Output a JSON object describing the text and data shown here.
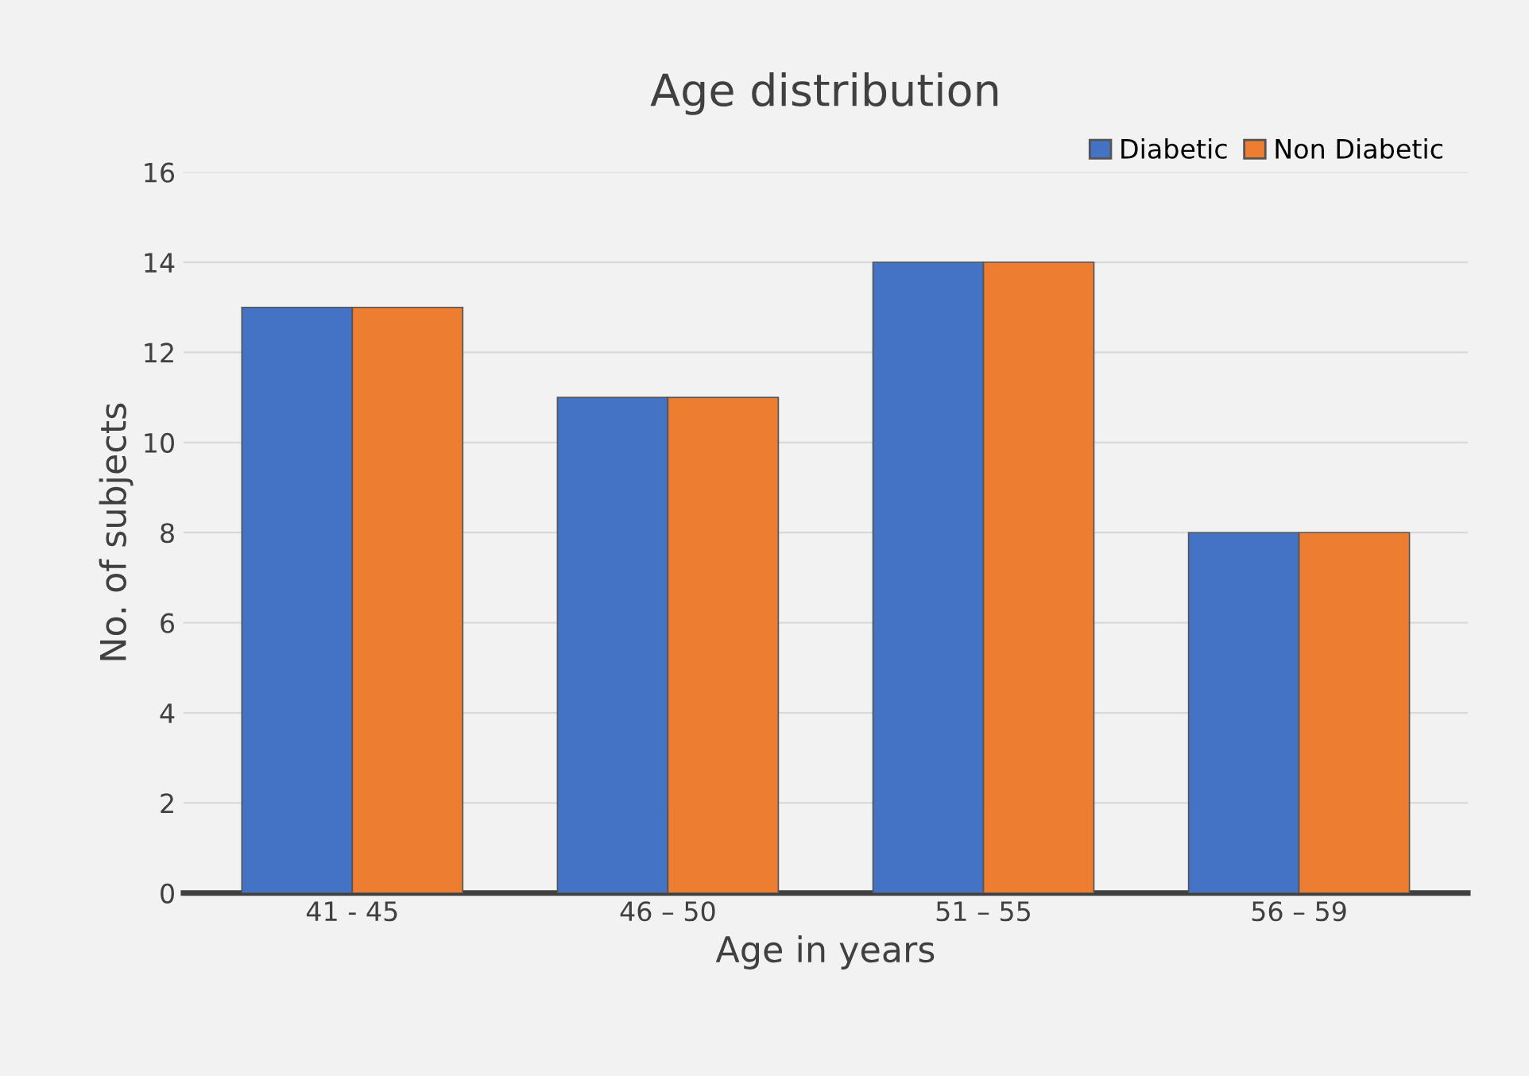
{
  "chart_data": {
    "type": "bar",
    "title": "Age distribution",
    "xlabel": "Age in years",
    "ylabel": "No. of subjects",
    "categories": [
      "41 - 45",
      "46 – 50",
      "51 – 55",
      "56 – 59"
    ],
    "series": [
      {
        "name": "Diabetic",
        "color": "#4472c4",
        "values": [
          13,
          11,
          14,
          8
        ]
      },
      {
        "name": "Non Diabetic",
        "color": "#ed7d31",
        "values": [
          13,
          11,
          14,
          8
        ]
      }
    ],
    "ylim": [
      0,
      16
    ],
    "yticks": [
      0,
      2,
      4,
      6,
      8,
      10,
      12,
      14,
      16
    ],
    "grid": "y",
    "legend": "top right"
  }
}
